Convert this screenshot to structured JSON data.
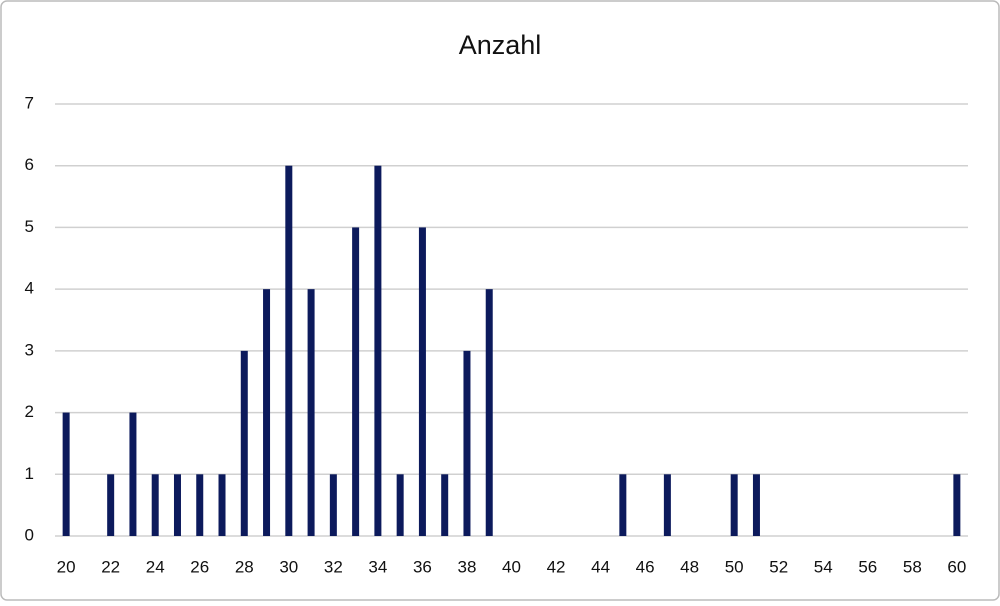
{
  "chart_data": {
    "type": "bar",
    "title": "Anzahl",
    "categories": [
      "20",
      null,
      "22",
      null,
      "24",
      null,
      "26",
      null,
      "28",
      null,
      "30",
      null,
      "32",
      null,
      "34",
      null,
      "36",
      null,
      "38",
      null,
      "40",
      null,
      "42",
      null,
      "44",
      null,
      "46",
      null,
      "48",
      null,
      "50",
      null,
      "52",
      null,
      "54",
      null,
      "56",
      null,
      "58",
      null,
      "60"
    ],
    "values": [
      2,
      0,
      1,
      2,
      1,
      1,
      1,
      1,
      3,
      4,
      6,
      4,
      1,
      5,
      6,
      1,
      5,
      1,
      3,
      4,
      0,
      0,
      0,
      0,
      0,
      1,
      0,
      1,
      0,
      0,
      1,
      1,
      0,
      0,
      0,
      0,
      0,
      0,
      0,
      0,
      1
    ],
    "color": "#0c1a5c",
    "ylim": [
      0,
      7
    ],
    "yticks": [
      0,
      1,
      2,
      3,
      4,
      5,
      6,
      7
    ],
    "grid": true
  }
}
